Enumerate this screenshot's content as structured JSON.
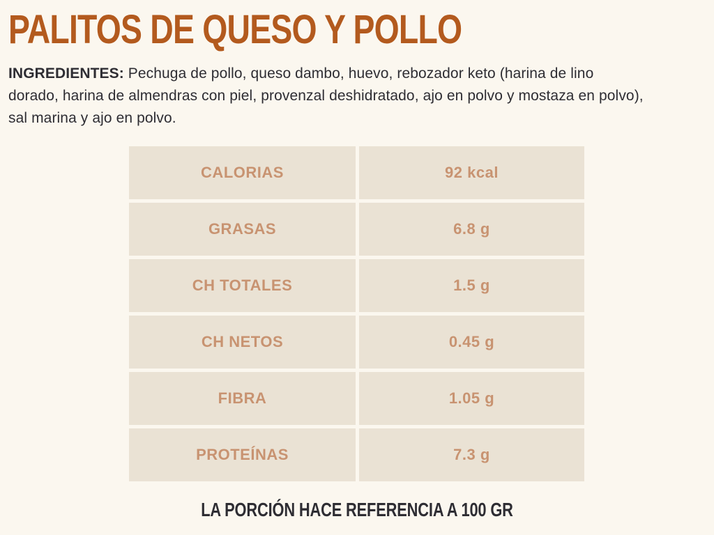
{
  "title": "PALITOS DE QUESO Y POLLO",
  "ingredients": {
    "label": "INGREDIENTES:",
    "text": " Pechuga de pollo, queso dambo, huevo, rebozador keto (harina de lino dorado, harina de almendras con piel, provenzal deshidratado, ajo en polvo y mostaza en polvo), sal marina y ajo en polvo."
  },
  "nutrition_table": {
    "rows": [
      {
        "label": "CALORIAS",
        "value": "92 kcal"
      },
      {
        "label": "GRASAS",
        "value": "6.8 g"
      },
      {
        "label": "CH TOTALES",
        "value": "1.5 g"
      },
      {
        "label": "CH NETOS",
        "value": "0.45 g"
      },
      {
        "label": "FIBRA",
        "value": "1.05 g"
      },
      {
        "label": "PROTEÍNAS",
        "value": "7.3 g"
      }
    ]
  },
  "footer_note": "LA PORCIÓN HACE REFERENCIA A 100 GR",
  "colors": {
    "background": "#fbf7ef",
    "title": "#b35a1e",
    "body_text": "#2e2d33",
    "cell_background": "#eae2d4",
    "cell_text": "#c89371"
  }
}
